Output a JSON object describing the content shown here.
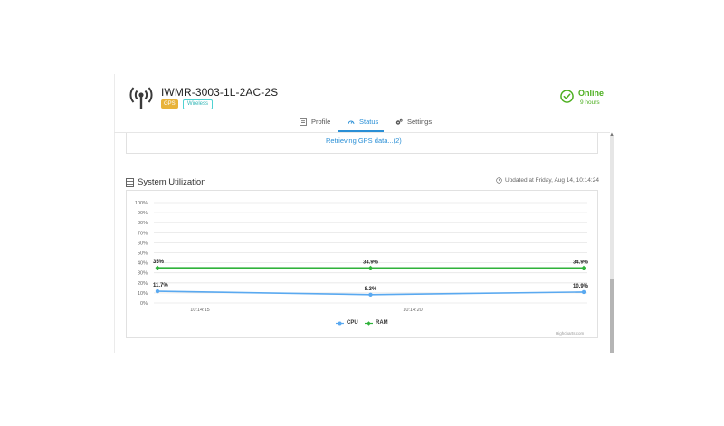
{
  "device": {
    "name": "IWMR-3003-1L-2AC-2S",
    "badges": [
      "GPS",
      "Wireless"
    ]
  },
  "status": {
    "label": "Online",
    "uptime": "9 hours",
    "color": "#4caf1f"
  },
  "tabs": [
    {
      "label": "Profile",
      "icon": "profile-icon"
    },
    {
      "label": "Status",
      "icon": "gauge-icon",
      "active": true
    },
    {
      "label": "Settings",
      "icon": "gears-icon"
    }
  ],
  "gps": {
    "message": "Retrieving GPS data...(2)"
  },
  "utilization": {
    "title": "System Utilization",
    "updated": "Updated at Friday, Aug 14, 10:14:24",
    "credits": "Highcharts.com"
  },
  "colors": {
    "accent": "#2a8fd6",
    "cpu": "#5aa9f0",
    "ram": "#2fb23a"
  },
  "chart_data": {
    "type": "line",
    "x_ticks": [
      "10:14:15",
      "10:14:20"
    ],
    "y_ticks": [
      "100%",
      "90%",
      "80%",
      "70%",
      "60%",
      "50%",
      "40%",
      "30%",
      "20%",
      "10%",
      "0%"
    ],
    "ylim": [
      0,
      100
    ],
    "grid": true,
    "legend_position": "bottom-center",
    "series": [
      {
        "name": "CPU",
        "values": [
          11.7,
          8.3,
          10.9
        ],
        "labels": [
          "11.7%",
          "8.3%",
          "10.9%"
        ],
        "color": "#5aa9f0"
      },
      {
        "name": "RAM",
        "values": [
          35,
          34.9,
          34.9
        ],
        "labels": [
          "35%",
          "34.9%",
          "34.9%"
        ],
        "color": "#2fb23a"
      }
    ]
  }
}
